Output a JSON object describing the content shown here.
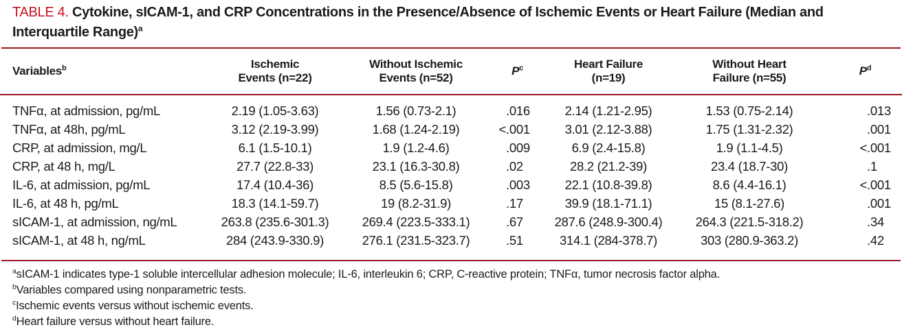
{
  "colors": {
    "title_red": "#c5121e",
    "rule_red": "#9e1420"
  },
  "title": {
    "label": "TABLE 4.",
    "text": " Cytokine, sICAM-1, and CRP Concentrations in the Presence/Absence of Ischemic Events or Heart Failure (Median and Interquartile Range)",
    "sup": "a"
  },
  "table": {
    "columns": [
      {
        "line1": "Variables",
        "sup": "b"
      },
      {
        "line1": "Ischemic",
        "line2": "Events (n=22)"
      },
      {
        "line1": "Without Ischemic",
        "line2": "Events (n=52)"
      },
      {
        "line1": "P",
        "sup": "c"
      },
      {
        "line1": "Heart Failure",
        "line2": "(n=19)"
      },
      {
        "line1": "Without Heart",
        "line2": "Failure (n=55)"
      },
      {
        "line1": "P",
        "sup": "d"
      }
    ],
    "rows": [
      [
        "TNFα, at admission, pg/mL",
        "2.19 (1.05-3.63)",
        "1.56 (0.73-2.1)",
        ".016",
        "2.14 (1.21-2.95)",
        "1.53 (0.75-2.14)",
        ".013"
      ],
      [
        "TNFα, at 48h, pg/mL",
        "3.12 (2.19-3.99)",
        "1.68 (1.24-2.19)",
        "<.001",
        "3.01 (2.12-3.88)",
        "1.75 (1.31-2.32)",
        ".001"
      ],
      [
        "CRP, at admission, mg/L",
        "6.1 (1.5-10.1)",
        "1.9 (1.2-4.6)",
        ".009",
        "6.9 (2.4-15.8)",
        "1.9 (1.1-4.5)",
        "<.001"
      ],
      [
        "CRP, at 48 h, mg/L",
        "27.7 (22.8-33)",
        "23.1 (16.3-30.8)",
        ".02",
        "28.2 (21.2-39)",
        "23.4 (18.7-30)",
        ".1"
      ],
      [
        "IL-6, at admission, pg/mL",
        "17.4 (10.4-36)",
        "8.5 (5.6-15.8)",
        ".003",
        "22.1 (10.8-39.8)",
        "8.6 (4.4-16.1)",
        "<.001"
      ],
      [
        "IL-6, at 48 h, pg/mL",
        "18.3 (14.1-59.7)",
        "19 (8.2-31.9)",
        ".17",
        "39.9 (18.1-71.1)",
        "15 (8.1-27.6)",
        ".001"
      ],
      [
        "sICAM-1, at admission, ng/mL",
        "263.8 (235.6-301.3)",
        "269.4 (223.5-333.1)",
        ".67",
        "287.6 (248.9-300.4)",
        "264.3 (221.5-318.2)",
        ".34"
      ],
      [
        "sICAM-1, at 48 h, ng/mL",
        "284 (243.9-330.9)",
        "276.1 (231.5-323.7)",
        ".51",
        "314.1 (284-378.7)",
        "303 (280.9-363.2)",
        ".42"
      ]
    ]
  },
  "footnotes": [
    {
      "sup": "a",
      "text": "sICAM-1 indicates type-1 soluble intercellular adhesion molecule; IL-6, interleukin 6; CRP, C-reactive protein; TNFα, tumor necrosis factor alpha."
    },
    {
      "sup": "b",
      "text": "Variables compared using nonparametric tests."
    },
    {
      "sup": "c",
      "text": "Ischemic events versus without ischemic events."
    },
    {
      "sup": "d",
      "text": "Heart failure versus without heart failure."
    }
  ]
}
